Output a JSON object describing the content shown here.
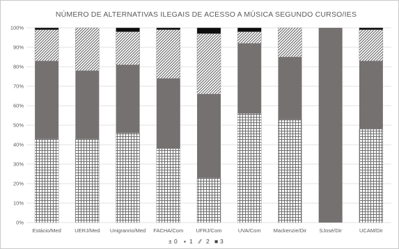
{
  "chart_data": {
    "type": "bar",
    "stacked": "percent",
    "title": "NÚMERO DE ALTERNATIVAS ILEGAIS DE ACESSO A MÚSICA SEGUNDO CURSO/IES",
    "categories": [
      "Estácio/Med",
      "UERJ/Med",
      "Unigranrio/Med",
      "FACHA/Com",
      "UFRJ/Com",
      "UVA/Com",
      "Mackenzie/Dir",
      "SJosé/Dir",
      "UCAM/Dir"
    ],
    "series": [
      {
        "name": "0",
        "pattern": "grid",
        "values": [
          43,
          43,
          46,
          38,
          23,
          56,
          53,
          0,
          48
        ]
      },
      {
        "name": "1",
        "pattern": "solid-gray",
        "values": [
          40,
          35,
          35,
          36,
          43,
          36,
          32,
          100,
          35
        ]
      },
      {
        "name": "2",
        "pattern": "diagonal",
        "values": [
          16,
          22,
          17,
          25,
          31,
          6,
          15,
          0,
          16
        ]
      },
      {
        "name": "3",
        "pattern": "solid-black",
        "values": [
          1,
          0,
          2,
          1,
          3,
          2,
          0,
          0,
          1
        ]
      }
    ],
    "yticks": [
      "0%",
      "10%",
      "20%",
      "30%",
      "40%",
      "50%",
      "60%",
      "70%",
      "80%",
      "90%",
      "100%"
    ],
    "ylim": [
      0,
      100
    ],
    "grid": true,
    "legend_position": "bottom",
    "legend_symbols": [
      "±",
      "▪",
      "⁄⁄",
      "■"
    ],
    "colors": {
      "solid_gray": "#767171",
      "solid_black": "#0d0d0d",
      "pattern_line": "#595959",
      "grid": "#d9d9d9",
      "text": "#595959"
    }
  }
}
